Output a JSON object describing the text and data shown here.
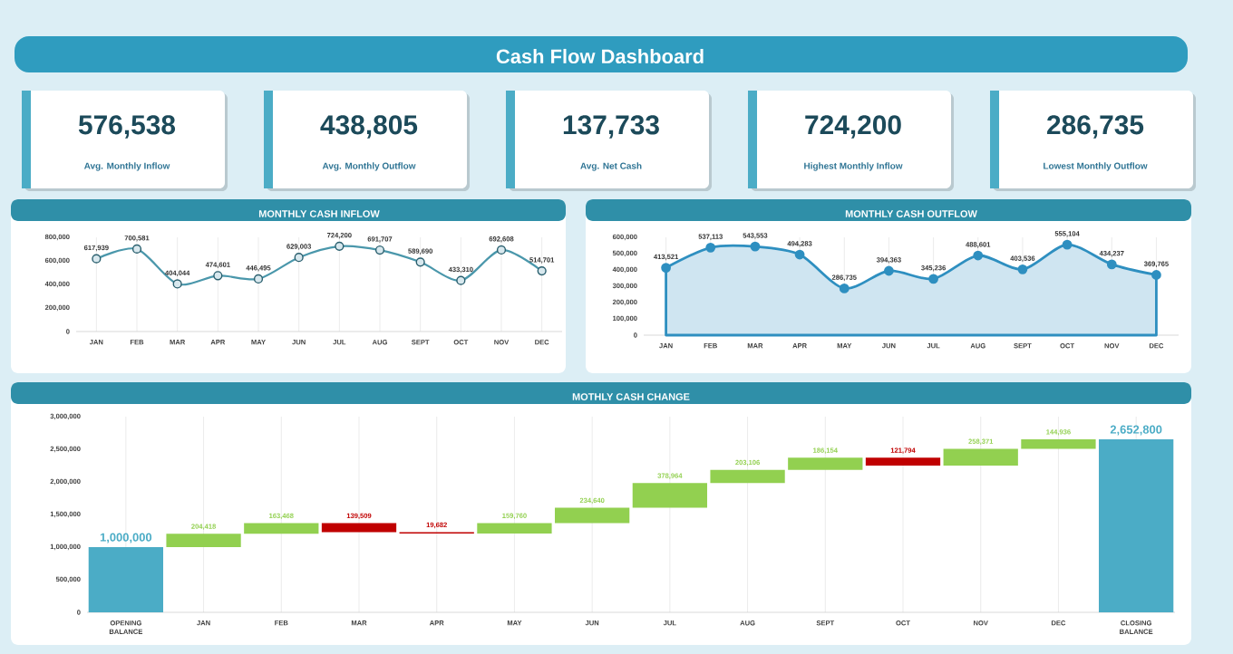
{
  "chart_data": [
    {
      "type": "other",
      "title": "Cash Flow Dashboard",
      "annotations": [
        "576,538",
        "Avg. Monthly Inflow",
        "438,805",
        "Avg.  Monthly Outflow",
        "137,733",
        "Avg.  Net Cash",
        "724,200",
        "Highest Monthly Inflow",
        "286,735",
        "Lowest Monthly Outflow"
      ]
    },
    {
      "type": "line",
      "title": "MONTHLY CASH INFLOW",
      "categories": [
        "JAN",
        "FEB",
        "MAR",
        "APR",
        "MAY",
        "JUN",
        "JUL",
        "AUG",
        "SEPT",
        "OCT",
        "NOV",
        "DEC"
      ],
      "values": [
        617939,
        700581,
        404044,
        474601,
        446495,
        629003,
        724200,
        691707,
        589690,
        433310,
        692608,
        514701
      ],
      "value_labels": [
        "617,939",
        "700,581",
        "404,044",
        "474,601",
        "446,495",
        "629,003",
        "724,200",
        "691,707",
        "589,690",
        "433,310",
        "692,608",
        "514,701"
      ],
      "color": "#4a97ab",
      "marker": "circle",
      "grid": "x",
      "ylim": [
        0,
        800000
      ],
      "yticks": [
        0,
        {
          "value": 200000,
          "label": "200,000"
        },
        {
          "value": 400000,
          "label": "400,000"
        },
        {
          "value": 600000,
          "label": "600,000"
        },
        {
          "value": 800000,
          "label": "800,000"
        }
      ]
    },
    {
      "type": "area",
      "title": "MONTHLY CASH OUTFLOW",
      "categories": [
        "JAN",
        "FEB",
        "MAR",
        "APR",
        "MAY",
        "JUN",
        "JUL",
        "AUG",
        "SEPT",
        "OCT",
        "NOV",
        "DEC"
      ],
      "values": [
        413521,
        537113,
        543553,
        494283,
        286735,
        394363,
        345236,
        488601,
        403536,
        555104,
        434237,
        369765
      ],
      "value_labels": [
        "413,521",
        "537,113",
        "543,553",
        "494,283",
        "286,735",
        "394,363",
        "345,236",
        "488,601",
        "403,536",
        "555,104",
        "434,237",
        "369,765"
      ],
      "color": "#2e8fc0",
      "marker": "circle",
      "grid": "x",
      "ylim": [
        0,
        600000
      ],
      "yticks": [
        0,
        {
          "value": 100000,
          "label": "100,000"
        },
        {
          "value": 200000,
          "label": "200,000"
        },
        {
          "value": 300000,
          "label": "300,000"
        },
        {
          "value": 400000,
          "label": "400,000"
        },
        {
          "value": 500000,
          "label": "500,000"
        },
        {
          "value": 600000,
          "label": "600,000"
        }
      ]
    },
    {
      "type": "bar",
      "title": "MOTHLY CASH CHANGE",
      "categories": [
        "OPENING BALANCE",
        "JAN",
        "FEB",
        "MAR",
        "APR",
        "MAY",
        "JUN",
        "JUL",
        "AUG",
        "SEPT",
        "OCT",
        "NOV",
        "DEC",
        "CLOSING BALANCE"
      ],
      "values": [
        1000000,
        204418,
        163468,
        -139509,
        -19682,
        159760,
        234640,
        378964,
        203106,
        186154,
        -121794,
        258371,
        144936,
        2652800
      ],
      "base": [
        0,
        1000000,
        1204418,
        1367886,
        1228377,
        1208695,
        1368455,
        1603095,
        1982059,
        2185165,
        2371319,
        2249525,
        2507896,
        0
      ],
      "value_labels": [
        "1,000,000",
        "204,418",
        "163,468",
        "139,509",
        "19,682",
        "159,760",
        "234,640",
        "378,964",
        "203,106",
        "186,154",
        "121,794",
        "258,371",
        "144,936",
        "2,652,800"
      ],
      "colors": [
        "#4bacc6",
        "#92d050",
        "#92d050",
        "#c00000",
        "#c00000",
        "#92d050",
        "#92d050",
        "#92d050",
        "#92d050",
        "#92d050",
        "#c00000",
        "#92d050",
        "#92d050",
        "#4bacc6"
      ],
      "grid": "x",
      "ylim": [
        0,
        3000000
      ],
      "yticks": [
        0,
        {
          "value": 500000,
          "label": "500,000"
        },
        {
          "value": 1000000,
          "label": "1,000,000"
        },
        {
          "value": 1500000,
          "label": "1,500,000"
        },
        {
          "value": 2000000,
          "label": "2,000,000"
        },
        {
          "value": 2500000,
          "label": "2,500,000"
        },
        {
          "value": 3000000,
          "label": "3,000,000"
        }
      ]
    }
  ]
}
